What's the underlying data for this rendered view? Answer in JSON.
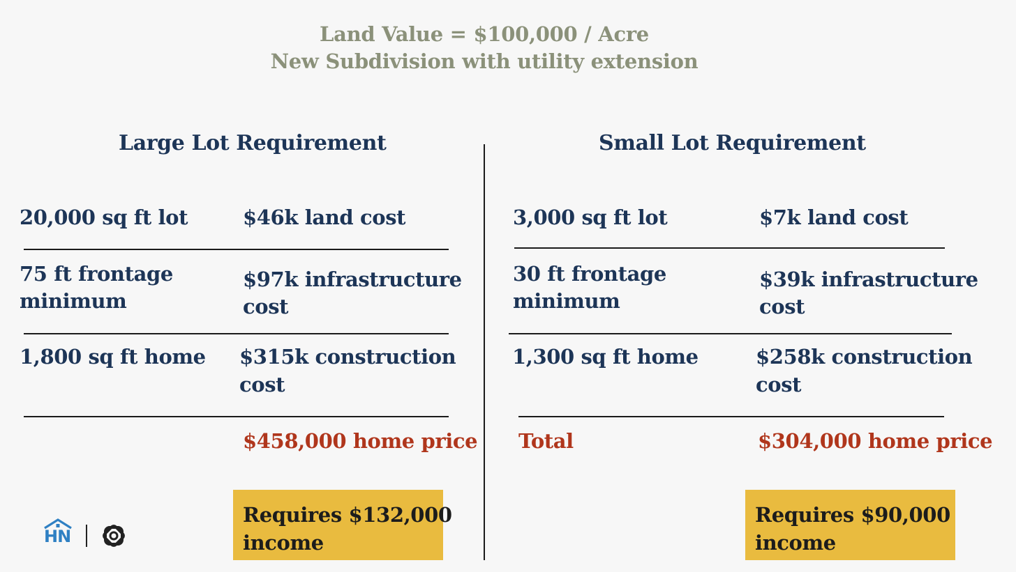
{
  "title": {
    "line1": "Land Value = $100,000 / Acre",
    "line2": "New Subdivision with utility extension"
  },
  "large": {
    "heading": "Large Lot Requirement",
    "rows": [
      {
        "left": "20,000 sq ft lot",
        "right": "$46k land cost"
      },
      {
        "left_line1": "75 ft frontage",
        "left_line2": "minimum",
        "right_line1": "$97k infrastructure",
        "right_line2": "cost"
      },
      {
        "left": "1,800 sq ft home",
        "right_line1": "$315k construction",
        "right_line2": "cost"
      }
    ],
    "total_label": "",
    "total": "$458,000 home price",
    "income_line1": "Requires $132,000",
    "income_line2": "income"
  },
  "small": {
    "heading": "Small Lot Requirement",
    "rows": [
      {
        "left": "3,000 sq ft lot",
        "right": "$7k land cost"
      },
      {
        "left_line1": "30 ft frontage",
        "left_line2": "minimum",
        "right_line1": "$39k infrastructure",
        "right_line2": "cost"
      },
      {
        "left": "1,300 sq ft home",
        "right_line1": "$258k construction",
        "right_line2": "cost"
      }
    ],
    "total_label": "Total",
    "total": "$304,000 home price",
    "income_line1": "Requires $90,000",
    "income_line2": "income"
  },
  "logos": {
    "hn_text": "HN",
    "hn_icon": "house-roof-icon",
    "partner_icon": "interlocking-square-icon"
  },
  "colors": {
    "background": "#f7f7f7",
    "title": "#8b917a",
    "navy": "#1d3557",
    "accent_red": "#b0361c",
    "highlight": "#e9bb3f",
    "logo_blue": "#2f80c3"
  }
}
